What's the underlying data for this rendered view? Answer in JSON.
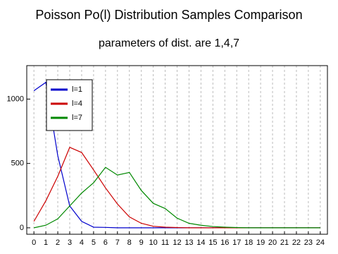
{
  "chart_data": {
    "type": "line",
    "title": "Poisson Po(l) Distribution Samples Comparison",
    "subtitle": "parameters of dist. are 1,4,7",
    "x": [
      0,
      1,
      2,
      3,
      4,
      5,
      6,
      7,
      8,
      9,
      10,
      11,
      12,
      13,
      14,
      15,
      16,
      17,
      18,
      19,
      20,
      21,
      22,
      23,
      24
    ],
    "series": [
      {
        "name": "l=1",
        "color": "#0000cc",
        "values": [
          1065,
          1130,
          560,
          170,
          50,
          5,
          3,
          0,
          0,
          0,
          0,
          0,
          0,
          0,
          0,
          0,
          0,
          0,
          0,
          0,
          0,
          0,
          0,
          0,
          0
        ]
      },
      {
        "name": "l=4",
        "color": "#cc0000",
        "values": [
          50,
          210,
          400,
          625,
          585,
          450,
          310,
          185,
          85,
          35,
          12,
          5,
          2,
          0,
          0,
          0,
          0,
          0,
          0,
          0,
          0,
          0,
          0,
          0,
          0
        ]
      },
      {
        "name": "l=7",
        "color": "#008800",
        "values": [
          0,
          20,
          70,
          170,
          270,
          350,
          470,
          410,
          430,
          290,
          190,
          150,
          75,
          35,
          20,
          10,
          5,
          2,
          0,
          0,
          0,
          0,
          0,
          0,
          0
        ]
      }
    ],
    "xlim": [
      -0.6,
      24.6
    ],
    "ylim": [
      -50,
      1260
    ],
    "xticks": [
      0,
      1,
      2,
      3,
      4,
      5,
      6,
      7,
      8,
      9,
      10,
      11,
      12,
      13,
      14,
      15,
      16,
      17,
      18,
      19,
      20,
      21,
      22,
      23,
      24
    ],
    "yticks": [
      0,
      500,
      1000
    ],
    "grid": true,
    "legend": "top-left"
  }
}
